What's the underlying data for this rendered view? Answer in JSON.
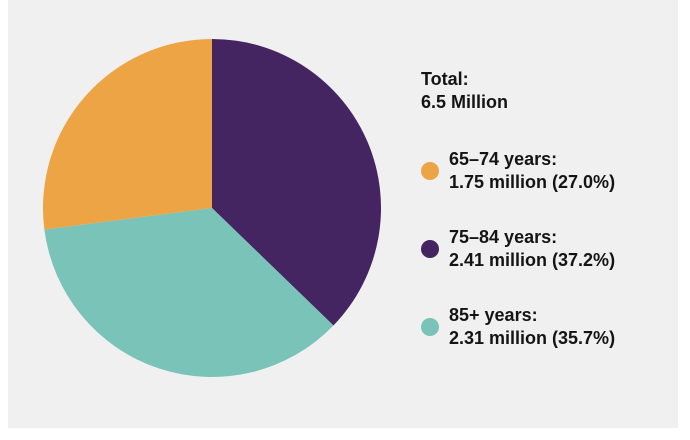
{
  "chart_data": {
    "type": "pie",
    "total_label": "Total:",
    "total_value": "6.5 Million",
    "start_angle": "12 o'clock, clockwise",
    "slices": [
      {
        "name": "75–84 years:",
        "detail": "2.41 million (37.2%)",
        "value": 2.41,
        "percent": 37.2,
        "color": "#442561"
      },
      {
        "name": "85+ years:",
        "detail": "2.31 million (35.7%)",
        "value": 2.31,
        "percent": 35.7,
        "color": "#7ac3b8"
      },
      {
        "name": "65–74 years:",
        "detail": "1.75 million (27.0%)",
        "value": 1.75,
        "percent": 27.0,
        "color": "#eda444"
      }
    ],
    "legend_order": [
      2,
      0,
      1
    ]
  }
}
